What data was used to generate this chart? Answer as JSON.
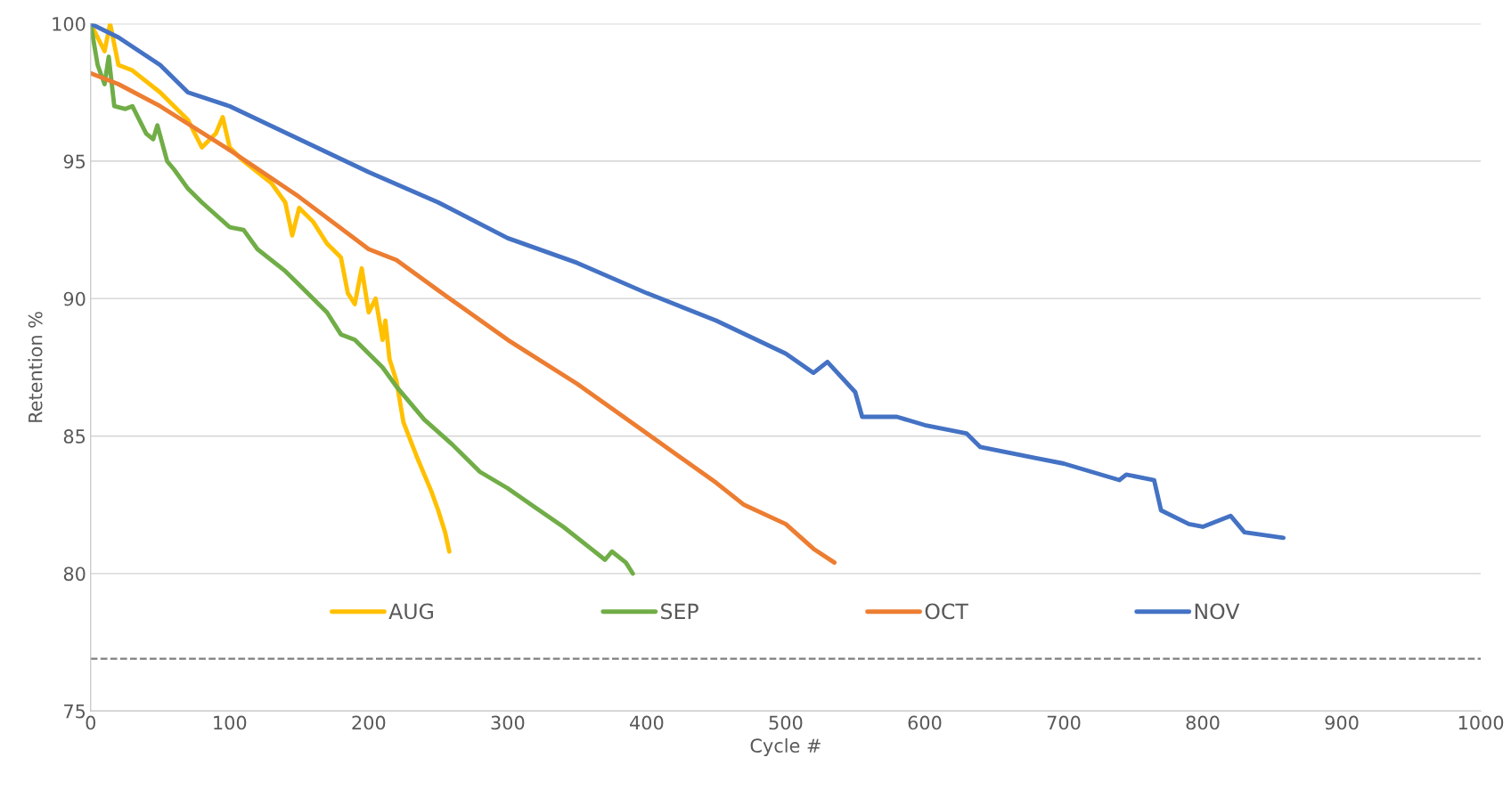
{
  "chart_data": {
    "type": "line",
    "xlabel": "Cycle #",
    "ylabel": "Retention %",
    "xlim": [
      0,
      1000
    ],
    "xticks": [
      0,
      100,
      200,
      300,
      400,
      500,
      600,
      700,
      800,
      900,
      1000
    ],
    "ylim": [
      75,
      100
    ],
    "yticks": [
      75,
      80,
      85,
      90,
      95,
      100
    ],
    "grid": "y",
    "legend": "bottom",
    "marker": "none",
    "line_style": "solid",
    "ref_lines": [
      {
        "axis": "y",
        "value": 76.9,
        "color": "#7f7f7f",
        "line_style": "dashed"
      }
    ],
    "series": [
      {
        "name": "AUG",
        "color": "#ffc000",
        "x": [
          0,
          10,
          14,
          20,
          30,
          50,
          60,
          70,
          80,
          90,
          95,
          100,
          110,
          130,
          140,
          145,
          150,
          160,
          170,
          180,
          185,
          190,
          195,
          200,
          205,
          210,
          212,
          215,
          220,
          225,
          235,
          245,
          250,
          255,
          258
        ],
        "values": [
          100,
          99,
          100,
          98.5,
          98.3,
          97.5,
          97,
          96.5,
          95.5,
          96,
          96.6,
          95.5,
          95,
          94.2,
          93.5,
          92.3,
          93.3,
          92.8,
          92,
          91.5,
          90.2,
          89.8,
          91.1,
          89.5,
          90,
          88.5,
          89.2,
          87.8,
          87,
          85.5,
          84.2,
          83,
          82.3,
          81.5,
          80.8
        ]
      },
      {
        "name": "SEP",
        "color": "#70ad47",
        "x": [
          0,
          5,
          10,
          13,
          17,
          25,
          30,
          40,
          45,
          48,
          55,
          60,
          70,
          80,
          100,
          110,
          120,
          140,
          150,
          170,
          180,
          190,
          210,
          220,
          240,
          260,
          280,
          300,
          320,
          340,
          360,
          370,
          375,
          385,
          390
        ],
        "values": [
          100,
          98.5,
          97.8,
          98.8,
          97,
          96.9,
          97,
          96,
          95.8,
          96.3,
          95,
          94.7,
          94,
          93.5,
          92.6,
          92.5,
          91.8,
          91,
          90.5,
          89.5,
          88.7,
          88.5,
          87.5,
          86.8,
          85.6,
          84.7,
          83.7,
          83.1,
          82.4,
          81.7,
          80.9,
          80.5,
          80.8,
          80.4,
          80.0
        ]
      },
      {
        "name": "OCT",
        "color": "#ed7d31",
        "x": [
          0,
          20,
          50,
          100,
          150,
          200,
          220,
          250,
          300,
          350,
          400,
          450,
          470,
          500,
          520,
          535
        ],
        "values": [
          98.2,
          97.8,
          97,
          95.4,
          93.7,
          91.8,
          91.4,
          90.3,
          88.5,
          86.9,
          85.1,
          83.3,
          82.5,
          81.8,
          80.9,
          80.4
        ]
      },
      {
        "name": "NOV",
        "color": "#4472c4",
        "x": [
          0,
          20,
          50,
          70,
          100,
          150,
          200,
          250,
          300,
          350,
          400,
          450,
          500,
          520,
          530,
          550,
          555,
          580,
          600,
          630,
          640,
          680,
          700,
          740,
          745,
          765,
          770,
          790,
          800,
          820,
          830,
          858
        ],
        "values": [
          100,
          99.5,
          98.5,
          97.5,
          97,
          95.8,
          94.6,
          93.5,
          92.2,
          91.3,
          90.2,
          89.2,
          88,
          87.3,
          87.7,
          86.6,
          85.7,
          85.7,
          85.4,
          85.1,
          84.6,
          84.2,
          84,
          83.4,
          83.6,
          83.4,
          82.3,
          81.8,
          81.7,
          82.1,
          81.5,
          81.3
        ]
      }
    ]
  }
}
